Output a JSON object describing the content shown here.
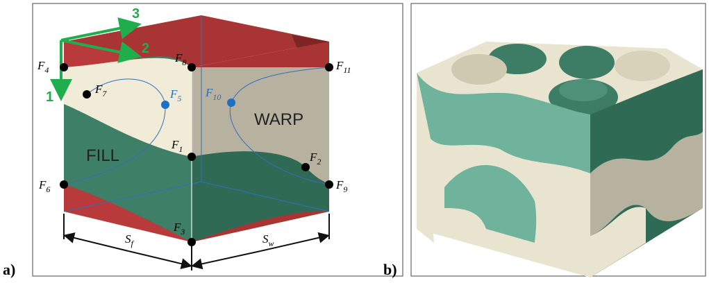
{
  "panel_a": {
    "label": "a)",
    "axes": [
      "1",
      "2",
      "3"
    ],
    "points": [
      {
        "symbol": "F",
        "index": "4",
        "color": "#000000"
      },
      {
        "symbol": "F",
        "index": "8",
        "color": "#000000"
      },
      {
        "symbol": "F",
        "index": "11",
        "color": "#000000"
      },
      {
        "symbol": "F",
        "index": "7",
        "color": "#000000"
      },
      {
        "symbol": "F",
        "index": "5",
        "color": "#1f6fc4"
      },
      {
        "symbol": "F",
        "index": "10",
        "color": "#1f6fc4"
      },
      {
        "symbol": "F",
        "index": "1",
        "color": "#000000"
      },
      {
        "symbol": "F",
        "index": "2",
        "color": "#000000"
      },
      {
        "symbol": "F",
        "index": "6",
        "color": "#000000"
      },
      {
        "symbol": "F",
        "index": "9",
        "color": "#000000"
      },
      {
        "symbol": "F",
        "index": "3",
        "color": "#000000"
      }
    ],
    "regions": [
      "FILL",
      "WARP"
    ],
    "dimensions": [
      {
        "symbol": "S",
        "index": "f"
      },
      {
        "symbol": "S",
        "index": "w"
      }
    ]
  },
  "panel_b": {
    "label": "b)"
  }
}
